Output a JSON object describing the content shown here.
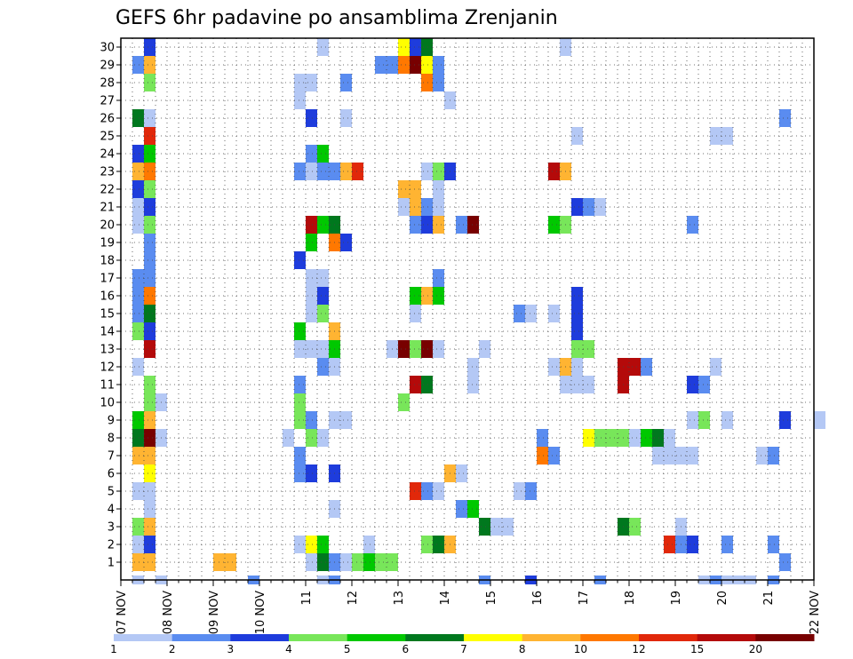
{
  "chart_data": {
    "type": "heatmap",
    "title": "GEFS 6hr padavine po ansamblima Zrenjanin",
    "xlabel": "",
    "ylabel": "",
    "x_start": "07 NOV 00Z",
    "x_step_hours": 6,
    "x_tick_labels": [
      "07 NOV",
      "08 NOV",
      "09 NOV",
      "10 NOV",
      "11",
      "12",
      "13",
      "14",
      "15",
      "16",
      "17",
      "18",
      "19",
      "20",
      "21",
      "22 NOV"
    ],
    "y_tick_labels": [
      "1",
      "2",
      "3",
      "4",
      "5",
      "6",
      "7",
      "8",
      "9",
      "10",
      "11",
      "12",
      "13",
      "14",
      "15",
      "16",
      "17",
      "18",
      "19",
      "20",
      "21",
      "22",
      "23",
      "24",
      "25",
      "26",
      "27",
      "28",
      "29",
      "30"
    ],
    "ylim": [
      0,
      30
    ],
    "grid": true,
    "colorbar": {
      "position": "bottom",
      "labels": [
        "1",
        "2",
        "3",
        "4",
        "5",
        "6",
        "7",
        "8",
        "10",
        "12",
        "15",
        "20"
      ],
      "bounds": [
        1,
        2,
        3,
        4,
        5,
        6,
        7,
        8,
        10,
        12,
        15,
        20
      ],
      "colors": [
        "#b4c8f5",
        "#5a8cf0",
        "#1e3cdc",
        "#78e65a",
        "#00c800",
        "#00781e",
        "#ffff00",
        "#ffb432",
        "#ff7800",
        "#e1280a",
        "#b40a0a",
        "#780000"
      ]
    },
    "cells": [
      [
        1,
        0,
        0
      ],
      [
        3,
        0,
        0
      ],
      [
        11,
        0,
        1
      ],
      [
        17,
        0,
        0
      ],
      [
        18,
        0,
        1
      ],
      [
        31,
        0,
        1
      ],
      [
        35,
        0,
        2
      ],
      [
        41,
        0,
        1
      ],
      [
        50,
        0,
        0
      ],
      [
        51,
        0,
        1
      ],
      [
        52,
        0,
        0
      ],
      [
        53,
        0,
        0
      ],
      [
        54,
        0,
        0
      ],
      [
        56,
        0,
        1
      ],
      [
        57,
        1,
        1
      ],
      [
        1,
        1,
        7
      ],
      [
        2,
        1,
        7
      ],
      [
        8,
        1,
        7
      ],
      [
        9,
        1,
        7
      ],
      [
        16,
        1,
        0
      ],
      [
        17,
        1,
        5
      ],
      [
        18,
        1,
        1
      ],
      [
        19,
        1,
        0
      ],
      [
        20,
        1,
        3
      ],
      [
        21,
        1,
        4
      ],
      [
        22,
        1,
        3
      ],
      [
        23,
        1,
        3
      ],
      [
        1,
        2,
        0
      ],
      [
        2,
        2,
        2
      ],
      [
        15,
        2,
        0
      ],
      [
        16,
        2,
        6
      ],
      [
        17,
        2,
        4
      ],
      [
        21,
        2,
        0
      ],
      [
        26,
        2,
        3
      ],
      [
        27,
        2,
        5
      ],
      [
        28,
        2,
        7
      ],
      [
        47,
        2,
        9
      ],
      [
        48,
        2,
        1
      ],
      [
        49,
        2,
        2
      ],
      [
        52,
        2,
        1
      ],
      [
        56,
        2,
        1
      ],
      [
        1,
        3,
        3
      ],
      [
        2,
        3,
        7
      ],
      [
        31,
        3,
        5
      ],
      [
        32,
        3,
        0
      ],
      [
        33,
        3,
        0
      ],
      [
        43,
        3,
        5
      ],
      [
        44,
        3,
        3
      ],
      [
        48,
        3,
        0
      ],
      [
        2,
        4,
        0
      ],
      [
        18,
        4,
        0
      ],
      [
        29,
        4,
        1
      ],
      [
        30,
        4,
        4
      ],
      [
        1,
        5,
        0
      ],
      [
        2,
        5,
        0
      ],
      [
        25,
        5,
        9
      ],
      [
        26,
        5,
        1
      ],
      [
        27,
        5,
        0
      ],
      [
        34,
        5,
        0
      ],
      [
        35,
        5,
        1
      ],
      [
        2,
        6,
        6
      ],
      [
        15,
        6,
        1
      ],
      [
        16,
        6,
        2
      ],
      [
        18,
        6,
        2
      ],
      [
        28,
        6,
        7
      ],
      [
        29,
        6,
        0
      ],
      [
        1,
        7,
        7
      ],
      [
        2,
        7,
        7
      ],
      [
        15,
        7,
        1
      ],
      [
        36,
        7,
        8
      ],
      [
        37,
        7,
        1
      ],
      [
        46,
        7,
        0
      ],
      [
        47,
        7,
        0
      ],
      [
        48,
        7,
        0
      ],
      [
        49,
        7,
        0
      ],
      [
        55,
        7,
        0
      ],
      [
        56,
        7,
        1
      ],
      [
        1,
        8,
        5
      ],
      [
        2,
        8,
        11
      ],
      [
        3,
        8,
        0
      ],
      [
        14,
        8,
        0
      ],
      [
        16,
        8,
        3
      ],
      [
        17,
        8,
        0
      ],
      [
        36,
        8,
        1
      ],
      [
        40,
        8,
        6
      ],
      [
        41,
        8,
        3
      ],
      [
        42,
        8,
        3
      ],
      [
        43,
        8,
        3
      ],
      [
        44,
        8,
        0
      ],
      [
        45,
        8,
        4
      ],
      [
        46,
        8,
        5
      ],
      [
        47,
        8,
        0
      ],
      [
        1,
        9,
        4
      ],
      [
        2,
        9,
        7
      ],
      [
        15,
        9,
        3
      ],
      [
        16,
        9,
        1
      ],
      [
        18,
        9,
        0
      ],
      [
        19,
        9,
        0
      ],
      [
        49,
        9,
        0
      ],
      [
        50,
        9,
        3
      ],
      [
        52,
        9,
        0
      ],
      [
        57,
        9,
        2
      ],
      [
        60,
        9,
        0
      ],
      [
        2,
        10,
        3
      ],
      [
        3,
        10,
        0
      ],
      [
        15,
        10,
        3
      ],
      [
        24,
        10,
        3
      ],
      [
        2,
        11,
        3
      ],
      [
        15,
        11,
        1
      ],
      [
        25,
        11,
        10
      ],
      [
        26,
        11,
        5
      ],
      [
        30,
        11,
        0
      ],
      [
        38,
        11,
        0
      ],
      [
        39,
        11,
        0
      ],
      [
        40,
        11,
        0
      ],
      [
        43,
        11,
        10
      ],
      [
        49,
        11,
        2
      ],
      [
        50,
        11,
        1
      ],
      [
        1,
        12,
        0
      ],
      [
        17,
        12,
        1
      ],
      [
        18,
        12,
        0
      ],
      [
        30,
        12,
        0
      ],
      [
        37,
        12,
        0
      ],
      [
        38,
        12,
        7
      ],
      [
        39,
        12,
        0
      ],
      [
        43,
        12,
        10
      ],
      [
        44,
        12,
        10
      ],
      [
        45,
        12,
        1
      ],
      [
        51,
        12,
        0
      ],
      [
        2,
        13,
        10
      ],
      [
        15,
        13,
        0
      ],
      [
        16,
        13,
        0
      ],
      [
        17,
        13,
        0
      ],
      [
        18,
        13,
        4
      ],
      [
        23,
        13,
        0
      ],
      [
        24,
        13,
        11
      ],
      [
        25,
        13,
        3
      ],
      [
        26,
        13,
        11
      ],
      [
        27,
        13,
        0
      ],
      [
        31,
        13,
        0
      ],
      [
        39,
        13,
        3
      ],
      [
        40,
        13,
        3
      ],
      [
        1,
        14,
        3
      ],
      [
        2,
        14,
        2
      ],
      [
        15,
        14,
        4
      ],
      [
        18,
        14,
        7
      ],
      [
        39,
        14,
        2
      ],
      [
        1,
        15,
        1
      ],
      [
        2,
        15,
        5
      ],
      [
        16,
        15,
        0
      ],
      [
        17,
        15,
        3
      ],
      [
        25,
        15,
        0
      ],
      [
        34,
        15,
        1
      ],
      [
        35,
        15,
        0
      ],
      [
        37,
        15,
        0
      ],
      [
        39,
        15,
        2
      ],
      [
        1,
        16,
        1
      ],
      [
        2,
        16,
        8
      ],
      [
        16,
        16,
        0
      ],
      [
        17,
        16,
        2
      ],
      [
        25,
        16,
        4
      ],
      [
        26,
        16,
        7
      ],
      [
        27,
        16,
        4
      ],
      [
        39,
        16,
        2
      ],
      [
        1,
        17,
        1
      ],
      [
        2,
        17,
        1
      ],
      [
        16,
        17,
        0
      ],
      [
        17,
        17,
        0
      ],
      [
        27,
        17,
        1
      ],
      [
        2,
        18,
        1
      ],
      [
        15,
        18,
        2
      ],
      [
        2,
        19,
        1
      ],
      [
        16,
        19,
        4
      ],
      [
        18,
        19,
        8
      ],
      [
        19,
        19,
        2
      ],
      [
        1,
        20,
        0
      ],
      [
        2,
        20,
        3
      ],
      [
        16,
        20,
        10
      ],
      [
        17,
        20,
        4
      ],
      [
        18,
        20,
        5
      ],
      [
        25,
        20,
        1
      ],
      [
        26,
        20,
        2
      ],
      [
        27,
        20,
        7
      ],
      [
        29,
        20,
        1
      ],
      [
        30,
        20,
        11
      ],
      [
        37,
        20,
        4
      ],
      [
        38,
        20,
        3
      ],
      [
        49,
        20,
        1
      ],
      [
        1,
        21,
        0
      ],
      [
        2,
        21,
        2
      ],
      [
        24,
        21,
        0
      ],
      [
        25,
        21,
        7
      ],
      [
        26,
        21,
        1
      ],
      [
        27,
        21,
        0
      ],
      [
        39,
        21,
        2
      ],
      [
        40,
        21,
        1
      ],
      [
        41,
        21,
        0
      ],
      [
        1,
        22,
        2
      ],
      [
        2,
        22,
        3
      ],
      [
        24,
        22,
        7
      ],
      [
        25,
        22,
        7
      ],
      [
        27,
        22,
        0
      ],
      [
        1,
        23,
        7
      ],
      [
        2,
        23,
        8
      ],
      [
        15,
        23,
        1
      ],
      [
        16,
        23,
        0
      ],
      [
        17,
        23,
        1
      ],
      [
        18,
        23,
        1
      ],
      [
        19,
        23,
        7
      ],
      [
        20,
        23,
        9
      ],
      [
        26,
        23,
        0
      ],
      [
        27,
        23,
        3
      ],
      [
        28,
        23,
        2
      ],
      [
        37,
        23,
        10
      ],
      [
        38,
        23,
        7
      ],
      [
        1,
        24,
        2
      ],
      [
        2,
        24,
        4
      ],
      [
        16,
        24,
        1
      ],
      [
        17,
        24,
        4
      ],
      [
        2,
        25,
        9
      ],
      [
        39,
        25,
        0
      ],
      [
        51,
        25,
        0
      ],
      [
        52,
        25,
        0
      ],
      [
        1,
        26,
        5
      ],
      [
        2,
        26,
        0
      ],
      [
        16,
        26,
        2
      ],
      [
        19,
        26,
        0
      ],
      [
        57,
        26,
        1
      ],
      [
        15,
        27,
        0
      ],
      [
        28,
        27,
        0
      ],
      [
        2,
        28,
        3
      ],
      [
        15,
        28,
        0
      ],
      [
        16,
        28,
        0
      ],
      [
        19,
        28,
        1
      ],
      [
        26,
        28,
        8
      ],
      [
        27,
        28,
        1
      ],
      [
        1,
        29,
        1
      ],
      [
        2,
        29,
        7
      ],
      [
        22,
        29,
        1
      ],
      [
        23,
        29,
        1
      ],
      [
        24,
        29,
        8
      ],
      [
        25,
        29,
        11
      ],
      [
        26,
        29,
        6
      ],
      [
        27,
        29,
        1
      ],
      [
        2,
        30,
        2
      ],
      [
        17,
        30,
        0
      ],
      [
        24,
        30,
        6
      ],
      [
        25,
        30,
        2
      ],
      [
        26,
        30,
        5
      ],
      [
        38,
        30,
        0
      ]
    ]
  }
}
